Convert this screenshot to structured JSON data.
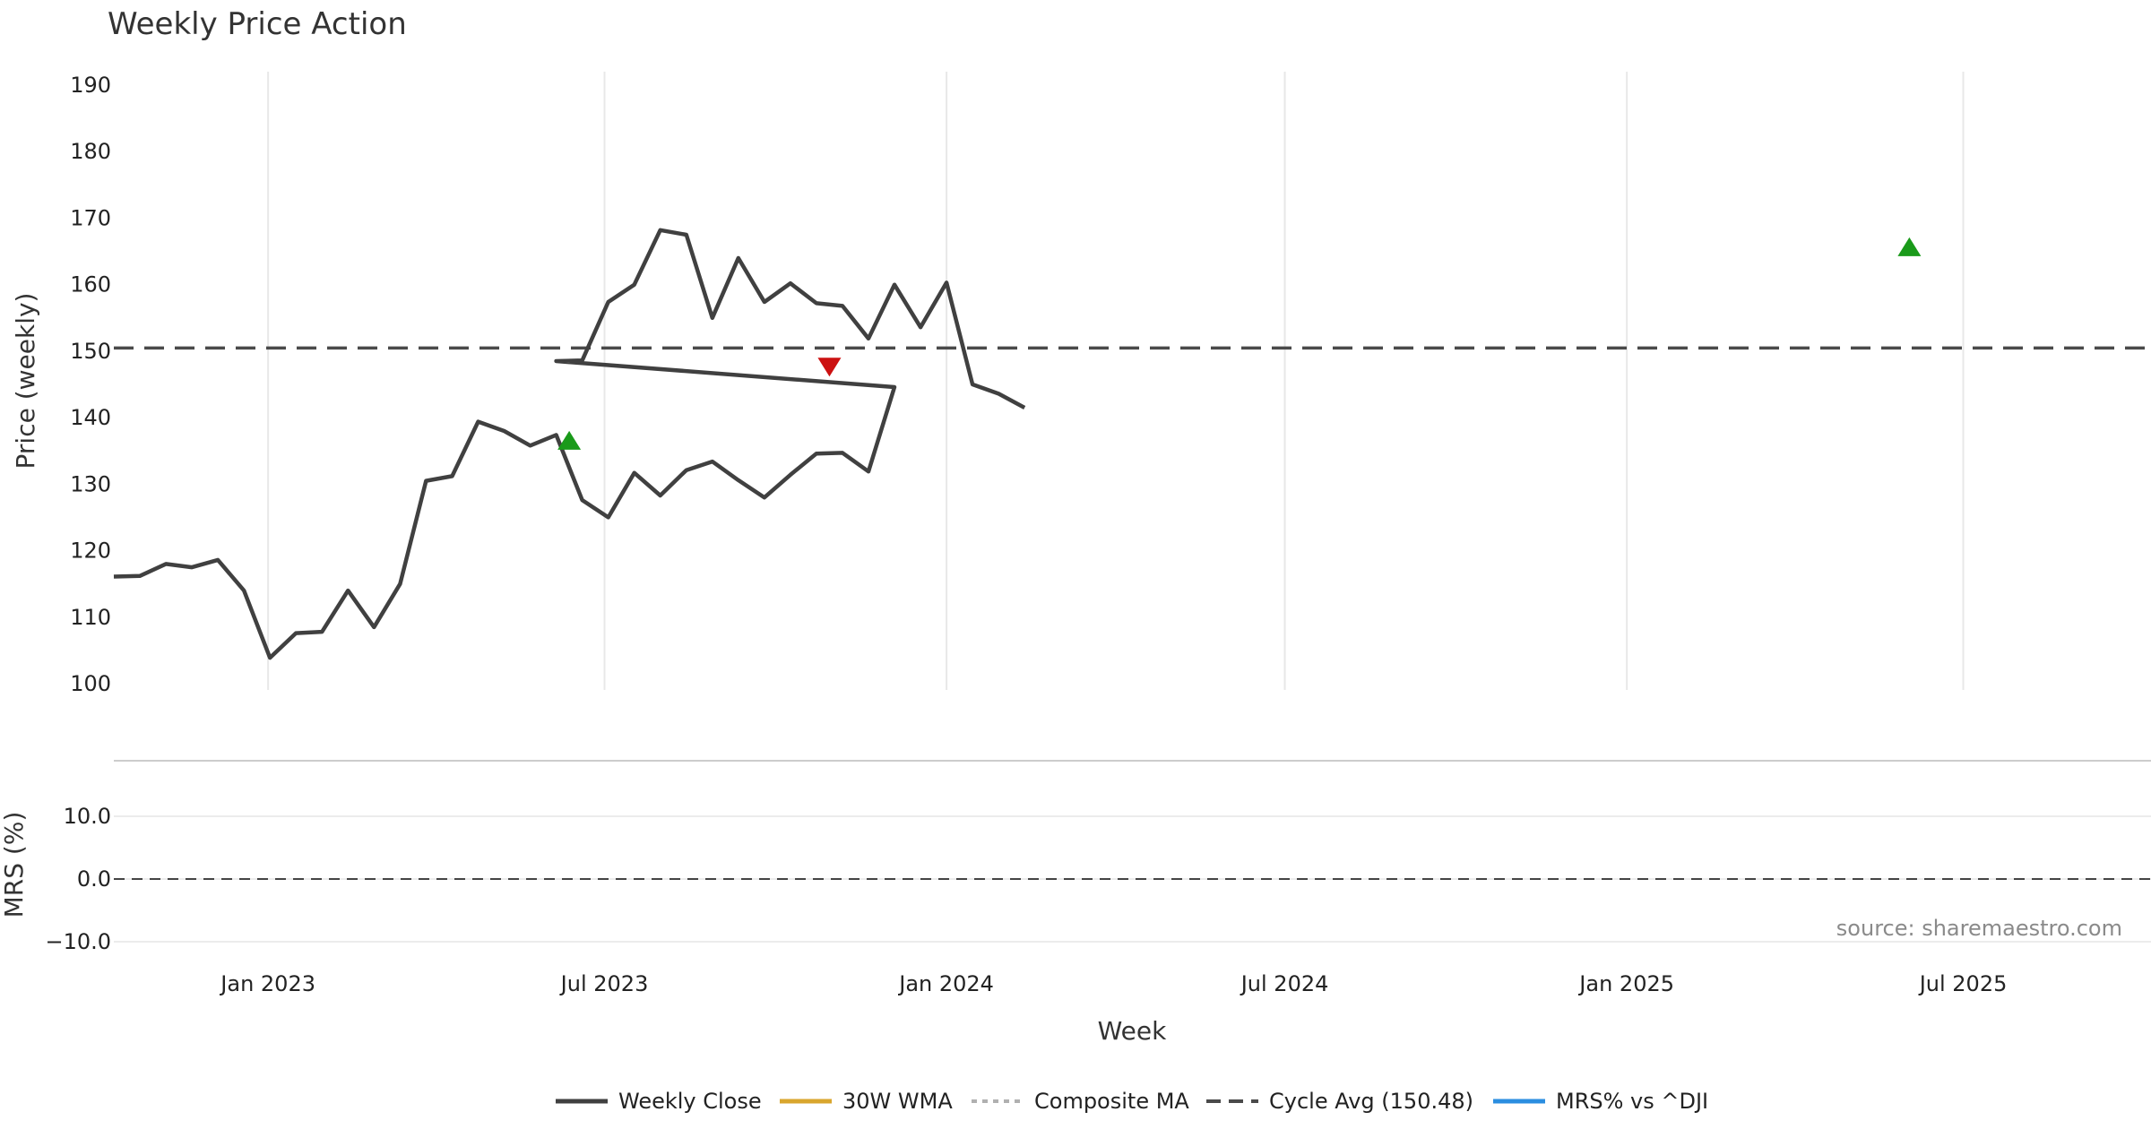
{
  "chart_data": {
    "type": "line",
    "title": "Weekly Price Action",
    "xlabel": "Week",
    "x_ticks": [
      "Jan 2023",
      "Jul 2023",
      "Jan 2024",
      "Jul 2024",
      "Jan 2025",
      "Jul 2025"
    ],
    "x_range": [
      "2022-10-10",
      "2025-10-10"
    ],
    "source": "source: sharemaestro.com",
    "price_panel": {
      "ylabel": "Price (weekly)",
      "ylim": [
        100,
        190
      ],
      "yticks": [
        "100",
        "110",
        "120",
        "130",
        "140",
        "150",
        "160",
        "170",
        "180",
        "190"
      ],
      "cycle_avg": 150.48,
      "series": [
        {
          "name": "Weekly Close",
          "color": "#404040",
          "points": [
            [
              "2022-10-10",
              116.1
            ],
            [
              "2022-10-24",
              116.2
            ],
            [
              "2022-11-07",
              118
            ],
            [
              "2022-11-21",
              117.5
            ],
            [
              "2022-12-05",
              118.6
            ],
            [
              "2022-12-19",
              114
            ],
            [
              "2023-01-02",
              103.9
            ],
            [
              "2023-01-16",
              107.6
            ],
            [
              "2023-01-30",
              107.8
            ],
            [
              "2023-02-13",
              114
            ],
            [
              "2023-02-27",
              108.5
            ],
            [
              "2023-03-13",
              115
            ],
            [
              "2023-03-27",
              130.5
            ],
            [
              "2023-04-10",
              131.2
            ],
            [
              "2023-04-24",
              139.4
            ],
            [
              "2023-05-08",
              138
            ],
            [
              "2023-05-22",
              135.8
            ],
            [
              "2023-06-05",
              137.4
            ],
            [
              "2023-06-19",
              127.6
            ],
            [
              "2023-07-03",
              125
            ],
            [
              "2023-07-17",
              131.7
            ],
            [
              "2023-07-31",
              128.3
            ],
            [
              "2023-08-14",
              132.1
            ],
            [
              "2023-08-28",
              133.4
            ],
            [
              "2023-09-11",
              130.6
            ],
            [
              "2023-09-25",
              128
            ],
            [
              "2023-10-09",
              131.4
            ],
            [
              "2023-10-23",
              134.6
            ],
            [
              "2023-11-06",
              134.7
            ],
            [
              "2023-11-20",
              131.9
            ],
            [
              "2023-12-04",
              144.6
            ],
            [
              "2023-06-05",
              148.5
            ],
            [
              "2023-06-19",
              148.6
            ],
            [
              "2023-07-03",
              157.4
            ],
            [
              "2023-07-17",
              160
            ],
            [
              "2023-07-31",
              168.2
            ],
            [
              "2023-08-14",
              167.5
            ],
            [
              "2023-08-28",
              155
            ],
            [
              "2023-09-11",
              164
            ],
            [
              "2023-09-25",
              157.4
            ],
            [
              "2023-10-09",
              160.2
            ],
            [
              "2023-10-23",
              157.2
            ],
            [
              "2023-11-06",
              156.8
            ],
            [
              "2023-11-20",
              151.9
            ],
            [
              "2023-12-04",
              160
            ],
            [
              "2023-12-18",
              153.6
            ],
            [
              "2024-01-01",
              160.3
            ],
            [
              "2024-01-15",
              145
            ],
            [
              "2024-01-29",
              143.6
            ],
            [
              "2024-02-12",
              141.5
            ]
          ]
        }
      ]
    },
    "mrs_panel": {
      "ylabel": "MRS (%)",
      "ylim": [
        -12,
        18
      ],
      "yticks": [
        "−10.0",
        "0.0",
        "10.0"
      ],
      "series_name": "MRS% vs ^DJI"
    },
    "legend": [
      "Weekly Close",
      "30W WMA",
      "Composite MA",
      "Cycle Avg (150.48)",
      "MRS% vs ^DJI"
    ],
    "signals": [
      {
        "date": "2023-06-12",
        "value": 136.4,
        "type": "buy",
        "color": "#1a9a1a"
      },
      {
        "date": "2023-10-30",
        "value": 147.8,
        "type": "sell",
        "color": "#cc1111"
      },
      {
        "date": "2025-06-02",
        "value": 165.5,
        "type": "buy",
        "color": "#1a9a1a"
      }
    ],
    "colors": {
      "close": "#404040",
      "wma": "#d9a62e",
      "composite": "#b0b0b0",
      "cycle": "#4a4a4a",
      "mrs": "#2b8ee0"
    }
  }
}
